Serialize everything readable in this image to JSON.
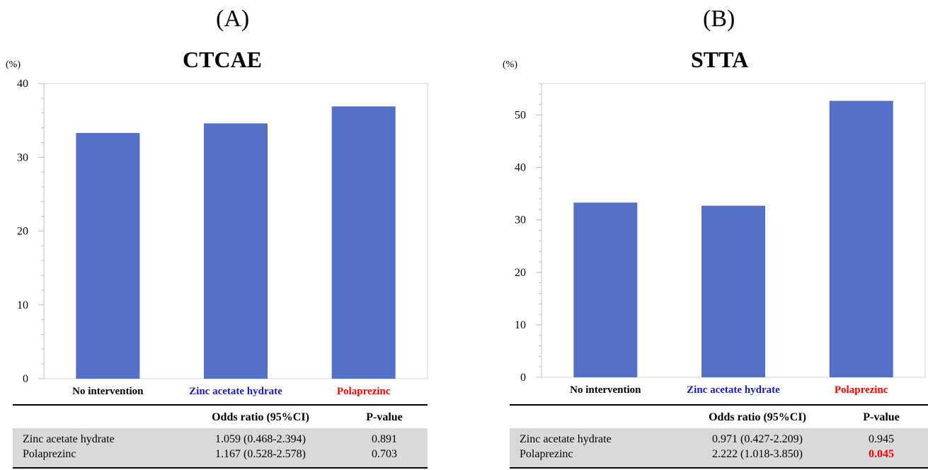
{
  "panels": [
    {
      "letter": "(A)",
      "title": "CTCAE",
      "unit": "(%)",
      "table": {
        "headers": [
          "",
          "Odds ratio (95%CI)",
          "P-value"
        ],
        "rows": [
          {
            "label": "Zinc acetate hydrate",
            "or": "1.059 (0.468-2.394)",
            "p": "0.891",
            "significant": false
          },
          {
            "label": "Polaprezinc",
            "or": "1.167 (0.528-2.578)",
            "p": "0.703",
            "significant": false
          }
        ]
      }
    },
    {
      "letter": "(B)",
      "title": "STTA",
      "unit": "(%)",
      "table": {
        "headers": [
          "",
          "Odds ratio (95%CI)",
          "P-value"
        ],
        "rows": [
          {
            "label": "Zinc acetate hydrate",
            "or": "0.971 (0.427-2.209)",
            "p": "0.945",
            "significant": false
          },
          {
            "label": "Polaprezinc",
            "or": "2.222 (1.018-3.850)",
            "p": "0.045",
            "significant": true
          }
        ]
      }
    }
  ],
  "chart_data": [
    {
      "type": "bar",
      "title": "CTCAE",
      "ylabel": "(%)",
      "categories": [
        "No intervention",
        "Zinc  acetate hydrate",
        "Polaprezinc"
      ],
      "category_colors": [
        "#000000",
        "#1a1acc",
        "#ff0000"
      ],
      "values": [
        33.3,
        34.6,
        36.9
      ],
      "ylim": [
        0,
        40
      ],
      "yticks": [
        0,
        10,
        20,
        30,
        40
      ],
      "bar_color": "#5470c6",
      "grid": false
    },
    {
      "type": "bar",
      "title": "STTA",
      "ylabel": "(%)",
      "categories": [
        "No intervention",
        "Zinc  acetate hydrate",
        "Polaprezinc"
      ],
      "category_colors": [
        "#000000",
        "#1a1acc",
        "#ff0000"
      ],
      "values": [
        33.3,
        32.7,
        52.7
      ],
      "ylim": [
        0,
        56
      ],
      "yticks": [
        0,
        10,
        20,
        30,
        40,
        50
      ],
      "bar_color": "#5470c6",
      "grid": false
    }
  ]
}
